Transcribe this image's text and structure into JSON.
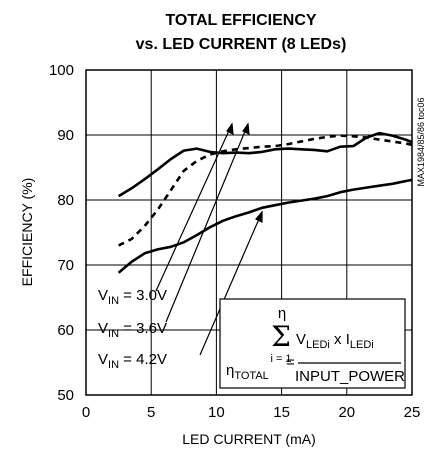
{
  "chart_data": {
    "type": "line",
    "title_line1": "TOTAL EFFICIENCY",
    "title_line2": "vs. LED CURRENT (8 LEDs)",
    "xlabel": "LED CURRENT (mA)",
    "ylabel": "EFFICIENCY (%)",
    "side_label": "MAX1984/85/86 toc06",
    "xlim": [
      0,
      25
    ],
    "ylim": [
      50,
      100
    ],
    "x_ticks": [
      0,
      5,
      10,
      15,
      20,
      25
    ],
    "y_ticks": [
      50,
      60,
      70,
      80,
      90,
      100
    ],
    "grid": true,
    "series": [
      {
        "name": "VIN = 3.0V",
        "label_main": "V",
        "label_sub": "IN",
        "label_rest": " = 3.0V",
        "style": "solid",
        "x": [
          2.5,
          3.5,
          4.5,
          5.5,
          6.5,
          7.5,
          8.5,
          9.5,
          10.5,
          11.5,
          12.5,
          13.5,
          14.5,
          15.5,
          16.5,
          17.5,
          18.5,
          19.5,
          20.5,
          21.5,
          22.5,
          23.5,
          24.5,
          25
        ],
        "values": [
          80.6,
          81.8,
          83.2,
          84.7,
          86.3,
          87.6,
          87.9,
          87.4,
          87.2,
          87.3,
          87.2,
          87.4,
          87.8,
          87.9,
          87.8,
          87.7,
          87.5,
          88.2,
          88.3,
          89.6,
          90.3,
          89.9,
          89.3,
          88.9
        ]
      },
      {
        "name": "VIN = 3.6V",
        "label_main": "V",
        "label_sub": "IN",
        "label_rest": " = 3.6V",
        "style": "dashed",
        "x": [
          2.5,
          3.5,
          4.5,
          5.5,
          6.5,
          7.5,
          8.5,
          9.5,
          10.5,
          11.5,
          12.5,
          13.5,
          14.5,
          15.5,
          16.5,
          17.5,
          18.5,
          19.5,
          20.5,
          21.5,
          22.5,
          23.5,
          24.5,
          25
        ],
        "values": [
          73.0,
          74.0,
          76.0,
          78.5,
          81.5,
          84.5,
          86.0,
          87.0,
          87.5,
          87.8,
          88.0,
          88.2,
          88.3,
          88.6,
          89.0,
          89.4,
          89.7,
          89.9,
          89.8,
          89.6,
          89.3,
          89.0,
          88.7,
          88.5
        ]
      },
      {
        "name": "VIN = 4.2V",
        "label_main": "V",
        "label_sub": "IN",
        "label_rest": " = 4.2V",
        "style": "solid",
        "x": [
          2.5,
          3.5,
          4.5,
          5.5,
          6.5,
          7.5,
          8.5,
          9.5,
          10.5,
          11.5,
          12.5,
          13.5,
          14.5,
          15.5,
          16.5,
          17.5,
          18.5,
          19.5,
          20.5,
          21.5,
          22.5,
          23.5,
          24.5,
          25
        ],
        "values": [
          68.8,
          70.5,
          71.8,
          72.4,
          72.8,
          73.5,
          74.6,
          75.8,
          76.8,
          77.5,
          78.1,
          78.8,
          79.2,
          79.6,
          79.9,
          80.2,
          80.6,
          81.2,
          81.6,
          81.9,
          82.2,
          82.5,
          82.9,
          83.1
        ]
      }
    ],
    "formula": {
      "eta_top": "η",
      "sigma": "Σ",
      "num_v": "V",
      "num_v_sub": "LEDi",
      "num_mid": " x I",
      "num_i_sub": "LEDi",
      "lower_limit": "i = 1",
      "lhs_eta": "η",
      "lhs_sub": "TOTAL",
      "equals": "=",
      "denominator": "INPUT_POWER"
    }
  }
}
